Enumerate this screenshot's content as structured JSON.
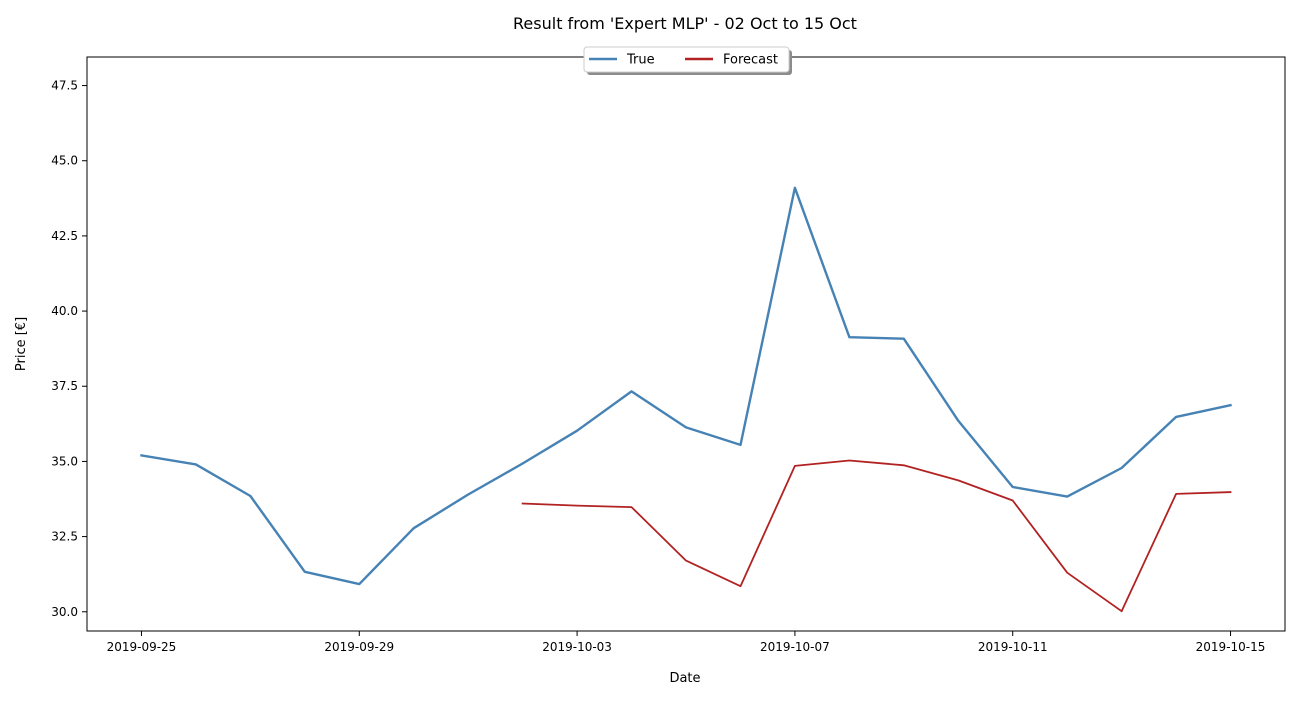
{
  "chart_data": {
    "type": "line",
    "title": "Result from 'Expert MLP' - 02 Oct to 15 Oct",
    "xlabel": "Date",
    "ylabel": "Price [€]",
    "x_range": [
      "2019-09-24",
      "2019-10-16"
    ],
    "ylim": [
      29.36,
      48.45
    ],
    "x_ticks": [
      "2019-09-25",
      "2019-09-29",
      "2019-10-03",
      "2019-10-07",
      "2019-10-11",
      "2019-10-15"
    ],
    "y_ticks": [
      "30.0",
      "32.5",
      "35.0",
      "37.5",
      "40.0",
      "42.5",
      "45.0",
      "47.5"
    ],
    "grid": false,
    "legend_placement": "top-center",
    "series": [
      {
        "name": "True",
        "color": "#4682b4",
        "x": [
          "2019-09-25",
          "2019-09-26",
          "2019-09-27",
          "2019-09-28",
          "2019-09-29",
          "2019-09-30",
          "2019-10-01",
          "2019-10-02",
          "2019-10-03",
          "2019-10-04",
          "2019-10-05",
          "2019-10-06",
          "2019-10-07",
          "2019-10-08",
          "2019-10-09",
          "2019-10-10",
          "2019-10-11",
          "2019-10-12",
          "2019-10-13",
          "2019-10-14",
          "2019-10-15"
        ],
        "values": [
          35.2,
          34.9,
          33.85,
          31.33,
          30.92,
          32.78,
          33.9,
          34.93,
          36.02,
          37.33,
          36.13,
          35.55,
          44.1,
          39.13,
          39.08,
          36.35,
          34.15,
          33.83,
          34.78,
          36.48,
          36.87
        ]
      },
      {
        "name": "Forecast",
        "color": "#b22222",
        "x": [
          "2019-10-02",
          "2019-10-03",
          "2019-10-04",
          "2019-10-05",
          "2019-10-06",
          "2019-10-07",
          "2019-10-08",
          "2019-10-09",
          "2019-10-10",
          "2019-10-11",
          "2019-10-12",
          "2019-10-13",
          "2019-10-14",
          "2019-10-15"
        ],
        "values": [
          33.6,
          33.53,
          33.48,
          31.7,
          30.85,
          34.85,
          35.03,
          34.87,
          34.37,
          33.7,
          31.3,
          30.02,
          33.92,
          33.98
        ]
      }
    ]
  }
}
